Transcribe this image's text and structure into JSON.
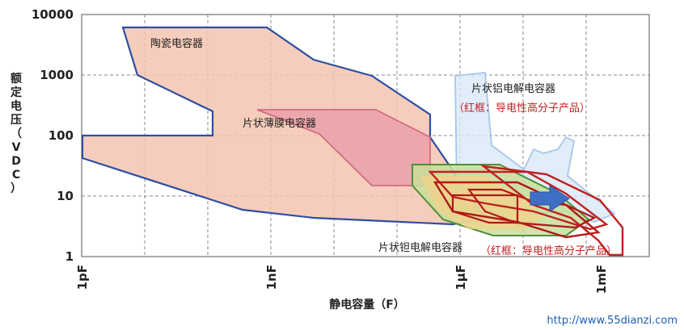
{
  "chart_data": {
    "type": "area",
    "xlabel": "静电容量（F）",
    "ylabel": "额定电压（VDC）",
    "y_scale": "log",
    "x_ticks": [
      "1pF",
      "1nF",
      "1μF",
      "1mF"
    ],
    "y_ticks": [
      "1",
      "10",
      "100",
      "1000",
      "10000"
    ],
    "ylim": [
      1,
      10000
    ],
    "grid": true,
    "regions": [
      {
        "name": "陶瓷电容器",
        "color": "#f2b8a0",
        "border": "#2e4fa3"
      },
      {
        "name": "片状薄膜电容器",
        "color": "#e9a0a8",
        "border": "#d06478"
      },
      {
        "name": "片状铝电解电容器",
        "note": "（红框：导电性高分子产品）",
        "color": "#d6e6f5",
        "border": "#a9c8e8"
      },
      {
        "name": "片状钽电解电容器",
        "note": "（红框：导电性高分子产品）",
        "color": "#cfe3a8",
        "border": "#4f8f3a"
      }
    ],
    "annotations": {
      "ceramic": "陶瓷电容器",
      "film": "片状薄膜电容器",
      "aluminum": "片状铝电解电容器",
      "aluminum_note": "（红框：导电性高分子产品）",
      "tantalum": "片状钽电解电容器",
      "tantalum_note": "（红框：导电性高分子产品）"
    }
  },
  "watermark": "http://www.55dianzi.com"
}
